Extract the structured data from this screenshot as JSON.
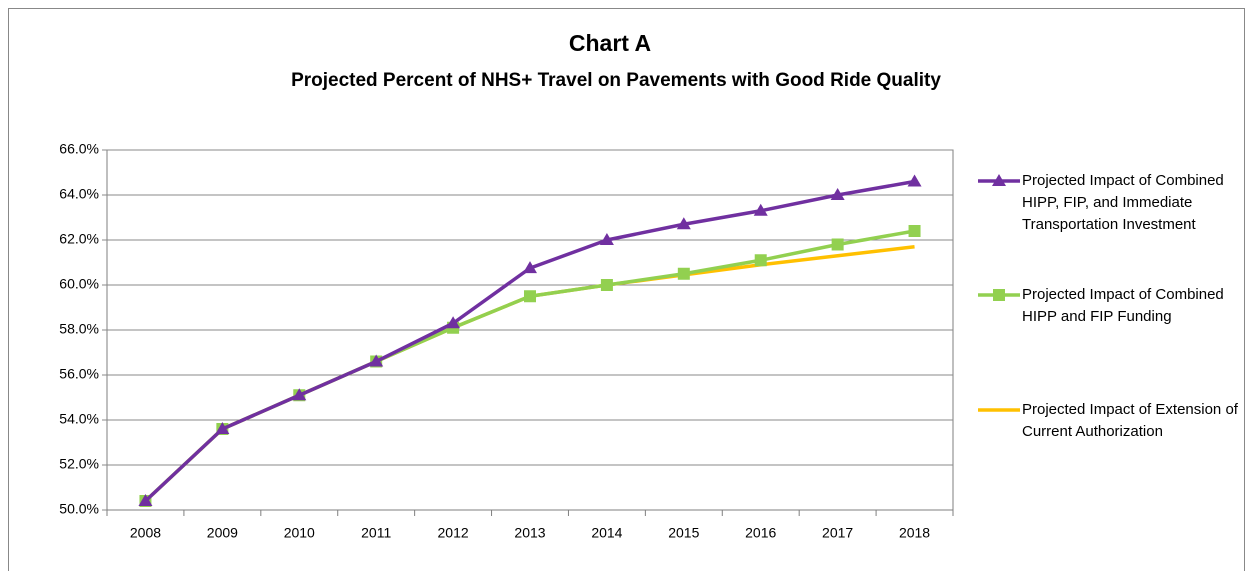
{
  "chart_data": {
    "type": "line",
    "title": "Chart A",
    "subtitle": "Projected Percent of NHS+ Travel on Pavements with Good Ride Quality",
    "categories": [
      "2008",
      "2009",
      "2010",
      "2011",
      "2012",
      "2013",
      "2014",
      "2015",
      "2016",
      "2017",
      "2018"
    ],
    "series": [
      {
        "name": "Projected Impact of Combined HIPP, FIP, and Immediate Transportation Investment",
        "color": "#7030a0",
        "marker": "triangle",
        "values": [
          50.4,
          53.6,
          55.1,
          56.6,
          58.3,
          60.75,
          62.0,
          62.7,
          63.3,
          64.0,
          64.6
        ]
      },
      {
        "name": "Projected Impact of Combined HIPP and FIP Funding",
        "color": "#92d050",
        "marker": "square",
        "values": [
          50.4,
          53.6,
          55.1,
          56.6,
          58.1,
          59.5,
          60.0,
          60.5,
          61.1,
          61.8,
          62.4
        ]
      },
      {
        "name": "Projected Impact of Extension of Current Authorization",
        "color": "#ffc000",
        "marker": "none",
        "values": [
          50.4,
          53.6,
          55.1,
          56.6,
          58.1,
          59.5,
          60.0,
          60.45,
          60.9,
          61.3,
          61.7
        ]
      }
    ],
    "ylim": [
      50,
      66
    ],
    "yticks": [
      {
        "value": 50,
        "label": "50.0%"
      },
      {
        "value": 52,
        "label": "52.0%"
      },
      {
        "value": 54,
        "label": "54.0%"
      },
      {
        "value": 56,
        "label": "56.0%"
      },
      {
        "value": 58,
        "label": "58.0%"
      },
      {
        "value": 60,
        "label": "60.0%"
      },
      {
        "value": 62,
        "label": "62.0%"
      },
      {
        "value": 64,
        "label": "64.0%"
      },
      {
        "value": 66,
        "label": "66.0%"
      }
    ],
    "grid": true,
    "legend": "right"
  }
}
